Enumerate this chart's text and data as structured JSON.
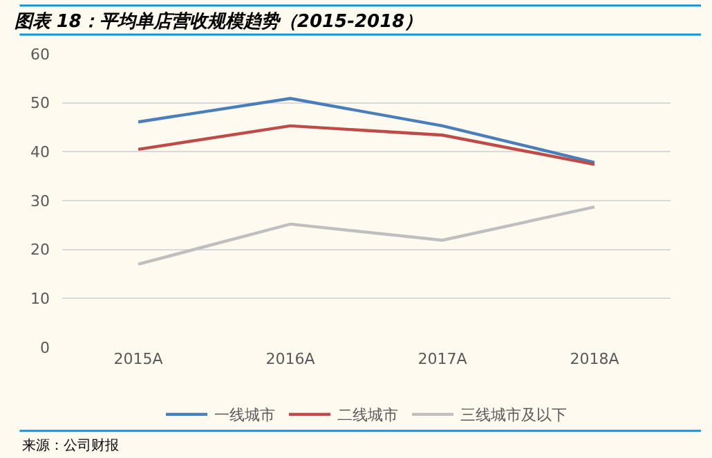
{
  "chart_data": {
    "type": "line",
    "title": "图表 18：平均单店营收规模趋势（2015-2018）",
    "categories": [
      "2015A",
      "2016A",
      "2017A",
      "2018A"
    ],
    "series": [
      {
        "name": "一线城市",
        "color": "#4a7ebb",
        "values": [
          46.1,
          50.9,
          45.3,
          37.8
        ]
      },
      {
        "name": "二线城市",
        "color": "#be4b48",
        "values": [
          40.5,
          45.3,
          43.4,
          37.4
        ]
      },
      {
        "name": "三线城市及以下",
        "color": "#bfbfbf",
        "values": [
          17.0,
          25.2,
          21.9,
          28.7
        ]
      }
    ],
    "ylim": [
      0,
      60
    ],
    "yticks": [
      0,
      10,
      20,
      30,
      40,
      50,
      60
    ],
    "grid": "y",
    "legend": "bottom",
    "marker": "none",
    "line_style": "solid",
    "annotations": [
      "来源：公司财报"
    ]
  }
}
